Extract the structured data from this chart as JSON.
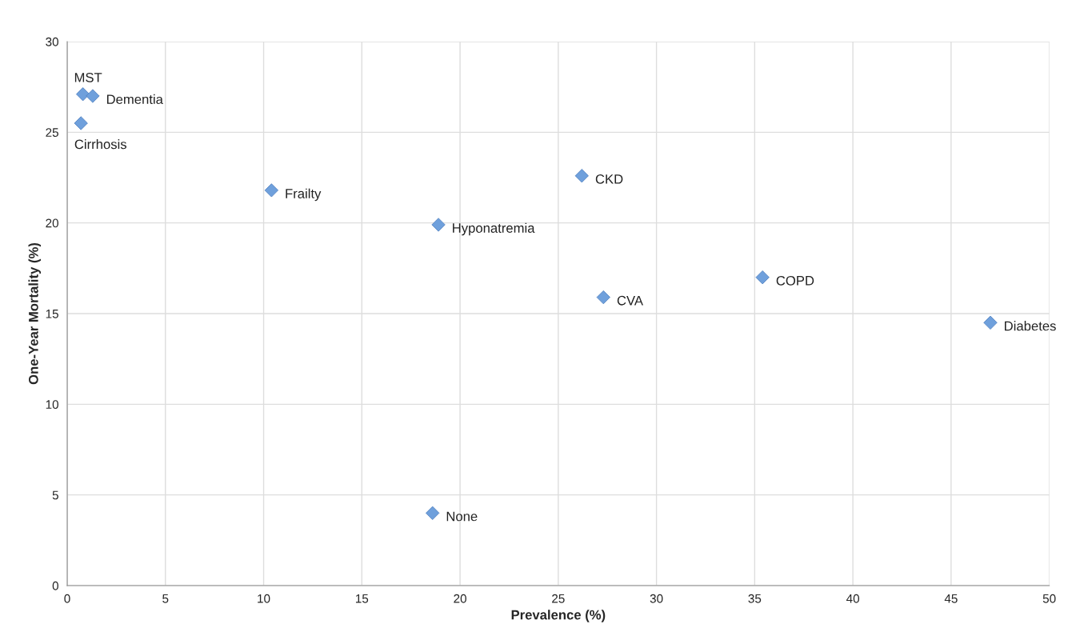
{
  "chart_data": {
    "type": "scatter",
    "xlabel": "Prevalence (%)",
    "ylabel": "One-Year Mortality (%)",
    "x": [
      0.8,
      1.3,
      0.7,
      10.4,
      26.2,
      18.9,
      27.3,
      35.4,
      47.0,
      18.6
    ],
    "series": [
      {
        "color": "#6fa0dc",
        "values": [
          27.1,
          27.0,
          25.5,
          21.8,
          22.6,
          19.9,
          15.9,
          17.0,
          14.5,
          4.0
        ]
      }
    ],
    "annotations": [
      {
        "text": "MST",
        "x": 0.8,
        "y": 27.1
      },
      {
        "text": "Dementia",
        "x": 1.3,
        "y": 27.0
      },
      {
        "text": "Cirrhosis",
        "x": 0.7,
        "y": 25.5
      },
      {
        "text": "Frailty",
        "x": 10.4,
        "y": 21.8
      },
      {
        "text": "CKD",
        "x": 26.2,
        "y": 22.6
      },
      {
        "text": "Hyponatremia",
        "x": 18.9,
        "y": 19.9
      },
      {
        "text": "CVA",
        "x": 27.3,
        "y": 15.9
      },
      {
        "text": "COPD",
        "x": 35.4,
        "y": 17.0
      },
      {
        "text": "Diabetes",
        "x": 47.0,
        "y": 14.5
      },
      {
        "text": "None",
        "x": 18.6,
        "y": 4.0
      }
    ],
    "xlim": [
      0,
      50
    ],
    "xticks": [
      0,
      5,
      10,
      15,
      20,
      25,
      30,
      35,
      40,
      45,
      50
    ],
    "ylim": [
      0,
      30
    ],
    "yticks": [
      0,
      5,
      10,
      15,
      20,
      25,
      30
    ],
    "grid": true,
    "marker": "diamond"
  }
}
